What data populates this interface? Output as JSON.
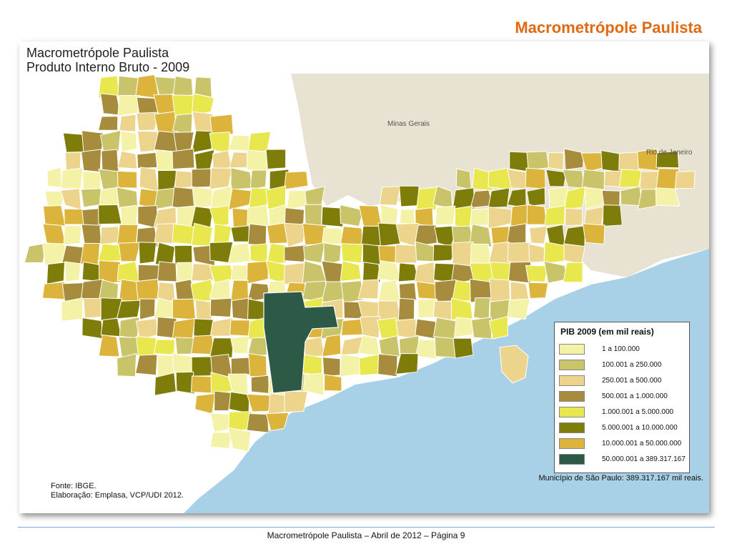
{
  "slide": {
    "title": "Macrometrópole Paulista",
    "footer": "Macrometrópole Paulista – Abril de 2012 –  Página 9"
  },
  "map": {
    "title_line1": "Macrometrópole Paulista",
    "title_line2": "Produto Interno Bruto - 2009",
    "regions": {
      "minas": "Minas Gerais",
      "rio": "Rio de Janeiro"
    },
    "source": "Fonte: IBGE.",
    "elaboration": "Elaboração: Emplasa, VCP/UDI 2012.",
    "municipality_note": "Município de São Paulo: 389.317.167 mil reais.",
    "colors": {
      "ocean": "#a8d0e6",
      "neighbor_state": "#e8e2d2",
      "outside": "#ffffff",
      "border": "#ffffff"
    }
  },
  "legend": {
    "title": "PIB 2009 (em mil reais)",
    "items": [
      {
        "label": "1 a 100.000",
        "color": "#f4f2a6"
      },
      {
        "label": "100.001 a 250.000",
        "color": "#c9c36a"
      },
      {
        "label": "250.001 a 500.000",
        "color": "#ecd48c"
      },
      {
        "label": "500.001 a 1.000.000",
        "color": "#a68c3c"
      },
      {
        "label": "1.000.001 a 5.000.000",
        "color": "#e8e84e"
      },
      {
        "label": "5.000.001 a 10.000.000",
        "color": "#7f7d0a"
      },
      {
        "label": "10.000.001 a 50.000.000",
        "color": "#dcb43c"
      },
      {
        "label": "50.000.001 a 389.317.167",
        "color": "#2c5a46"
      }
    ]
  }
}
